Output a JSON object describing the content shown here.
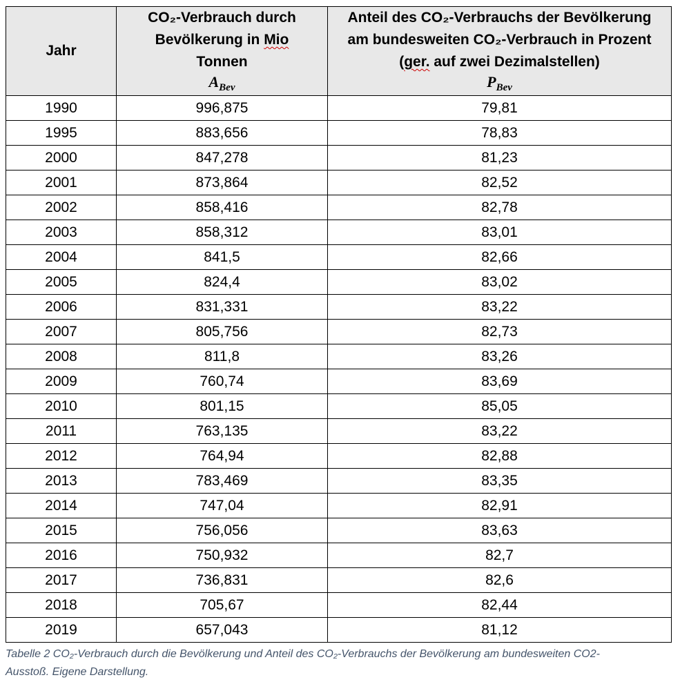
{
  "table": {
    "headers": {
      "year": "Jahr",
      "consumption": {
        "line1": "CO₂-Verbrauch durch",
        "line2a": "Bevölkerung in ",
        "line2b": "Mio",
        "line3": "Tonnen",
        "symbol": "A",
        "symbol_sub": "Bev"
      },
      "share": {
        "line1": "Anteil des CO₂-Verbrauchs der Bevölkerung",
        "line2": "am bundesweiten CO₂-Verbrauch in Prozent",
        "line3a": "(",
        "line3b": "ger.",
        "line3c": " auf zwei Dezimalstellen)",
        "symbol": "P",
        "symbol_sub": "Bev"
      }
    },
    "rows": [
      {
        "year": "1990",
        "consumption": "996,875",
        "share": "79,81"
      },
      {
        "year": "1995",
        "consumption": "883,656",
        "share": "78,83"
      },
      {
        "year": "2000",
        "consumption": "847,278",
        "share": "81,23"
      },
      {
        "year": "2001",
        "consumption": "873,864",
        "share": "82,52"
      },
      {
        "year": "2002",
        "consumption": "858,416",
        "share": "82,78"
      },
      {
        "year": "2003",
        "consumption": "858,312",
        "share": "83,01"
      },
      {
        "year": "2004",
        "consumption": "841,5",
        "share": "82,66"
      },
      {
        "year": "2005",
        "consumption": "824,4",
        "share": "83,02"
      },
      {
        "year": "2006",
        "consumption": "831,331",
        "share": "83,22"
      },
      {
        "year": "2007",
        "consumption": "805,756",
        "share": "82,73"
      },
      {
        "year": "2008",
        "consumption": "811,8",
        "share": "83,26"
      },
      {
        "year": "2009",
        "consumption": "760,74",
        "share": "83,69"
      },
      {
        "year": "2010",
        "consumption": "801,15",
        "share": "85,05"
      },
      {
        "year": "2011",
        "consumption": "763,135",
        "share": "83,22"
      },
      {
        "year": "2012",
        "consumption": "764,94",
        "share": "82,88"
      },
      {
        "year": "2013",
        "consumption": "783,469",
        "share": "83,35"
      },
      {
        "year": "2014",
        "consumption": "747,04",
        "share": "82,91"
      },
      {
        "year": "2015",
        "consumption": "756,056",
        "share": "83,63"
      },
      {
        "year": "2016",
        "consumption": "750,932",
        "share": "82,7"
      },
      {
        "year": "2017",
        "consumption": "736,831",
        "share": "82,6"
      },
      {
        "year": "2018",
        "consumption": "705,67",
        "share": "82,44"
      },
      {
        "year": "2019",
        "consumption": "657,043",
        "share": "81,12"
      }
    ]
  },
  "caption": {
    "line1": "Tabelle 2 CO₂-Verbrauch durch die Bevölkerung und Anteil des CO₂-Verbrauchs der Bevölkerung am bundesweiten CO2-",
    "line2": "Ausstoß. Eigene Darstellung."
  }
}
